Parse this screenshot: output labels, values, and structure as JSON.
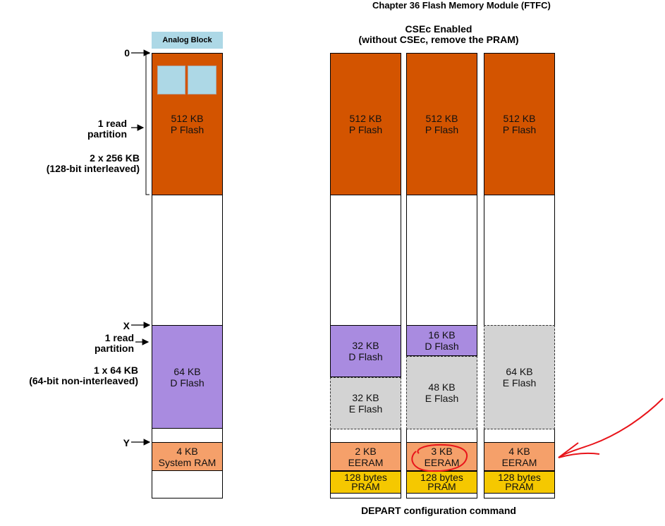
{
  "header": {
    "chapter": "Chapter 36 Flash Memory Module (FTFC)"
  },
  "left": {
    "analog_block": "Analog Block",
    "pflash": [
      "512 KB",
      "P Flash"
    ],
    "dflash": [
      "64 KB",
      "D Flash"
    ],
    "sysram": [
      "4 KB",
      "System RAM"
    ],
    "markers": {
      "zero": "0",
      "x": "X",
      "y": "Y"
    },
    "annot_top": {
      "line1": "1 read",
      "line2": "partition",
      "line3": "2 x 256 KB",
      "line4": "(128-bit interleaved)"
    },
    "annot_bottom": {
      "line1": "1 read",
      "line2": "partition",
      "line3": "1 x 64 KB",
      "line4": "(64-bit non-interleaved)"
    }
  },
  "right": {
    "title": "CSEc Enabled",
    "subtitle": "(without CSEc, remove the PRAM)",
    "footer": "DEPART configuration command",
    "col1": {
      "pflash": [
        "512 KB",
        "P Flash"
      ],
      "dflash": [
        "32 KB",
        "D Flash"
      ],
      "eflash": [
        "32 KB",
        "E Flash"
      ],
      "eeram": [
        "2 KB",
        "EERAM"
      ],
      "pram": [
        "128 bytes",
        "PRAM"
      ]
    },
    "col2": {
      "pflash": [
        "512 KB",
        "P Flash"
      ],
      "dflash": [
        "16 KB",
        "D Flash"
      ],
      "eflash": [
        "48 KB",
        "E Flash"
      ],
      "eeram": [
        "3 KB",
        "EERAM"
      ],
      "pram": [
        "128 bytes",
        "PRAM"
      ]
    },
    "col3": {
      "pflash": [
        "512 KB",
        "P Flash"
      ],
      "eflash": [
        "64 KB",
        "E Flash"
      ],
      "eeram": [
        "4 KB",
        "EERAM"
      ],
      "pram": [
        "128 bytes",
        "PRAM"
      ]
    }
  },
  "colors": {
    "pflash": "#d35400",
    "dflash": "#a98be0",
    "eflash": "#d3d3d3",
    "ram": "#f5a06a",
    "pram": "#f5c800",
    "analog": "#add8e6",
    "annotation": "#e8141a"
  }
}
